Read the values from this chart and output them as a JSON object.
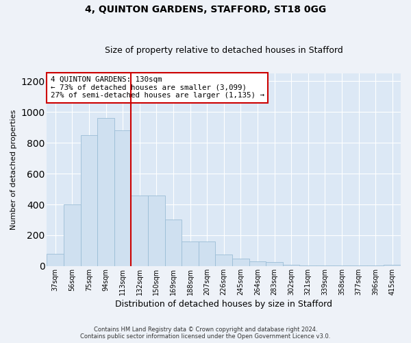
{
  "title1": "4, QUINTON GARDENS, STAFFORD, ST18 0GG",
  "title2": "Size of property relative to detached houses in Stafford",
  "xlabel": "Distribution of detached houses by size in Stafford",
  "ylabel": "Number of detached properties",
  "categories": [
    "37sqm",
    "56sqm",
    "75sqm",
    "94sqm",
    "113sqm",
    "132sqm",
    "150sqm",
    "169sqm",
    "188sqm",
    "207sqm",
    "226sqm",
    "245sqm",
    "264sqm",
    "283sqm",
    "302sqm",
    "321sqm",
    "339sqm",
    "358sqm",
    "377sqm",
    "396sqm",
    "415sqm"
  ],
  "values": [
    80,
    400,
    850,
    960,
    880,
    460,
    460,
    300,
    160,
    160,
    75,
    50,
    30,
    25,
    10,
    5,
    5,
    5,
    5,
    5,
    10
  ],
  "bar_color": "#cfe0f0",
  "bar_edge_color": "#9bbdd6",
  "vline_x_index": 5,
  "vline_color": "#cc0000",
  "annotation_line1": "4 QUINTON GARDENS: 130sqm",
  "annotation_line2": "← 73% of detached houses are smaller (3,099)",
  "annotation_line3": "27% of semi-detached houses are larger (1,135) →",
  "annotation_box_color": "#ffffff",
  "annotation_box_edge_color": "#cc0000",
  "ylim": [
    0,
    1250
  ],
  "yticks": [
    0,
    200,
    400,
    600,
    800,
    1000,
    1200
  ],
  "footer1": "Contains HM Land Registry data © Crown copyright and database right 2024.",
  "footer2": "Contains public sector information licensed under the Open Government Licence v3.0.",
  "bg_color": "#eef2f8",
  "plot_bg_color": "#dce8f5",
  "grid_color": "#ffffff",
  "title1_fontsize": 10,
  "title2_fontsize": 9,
  "xlabel_fontsize": 9,
  "ylabel_fontsize": 8,
  "tick_fontsize": 8,
  "xtick_fontsize": 7
}
